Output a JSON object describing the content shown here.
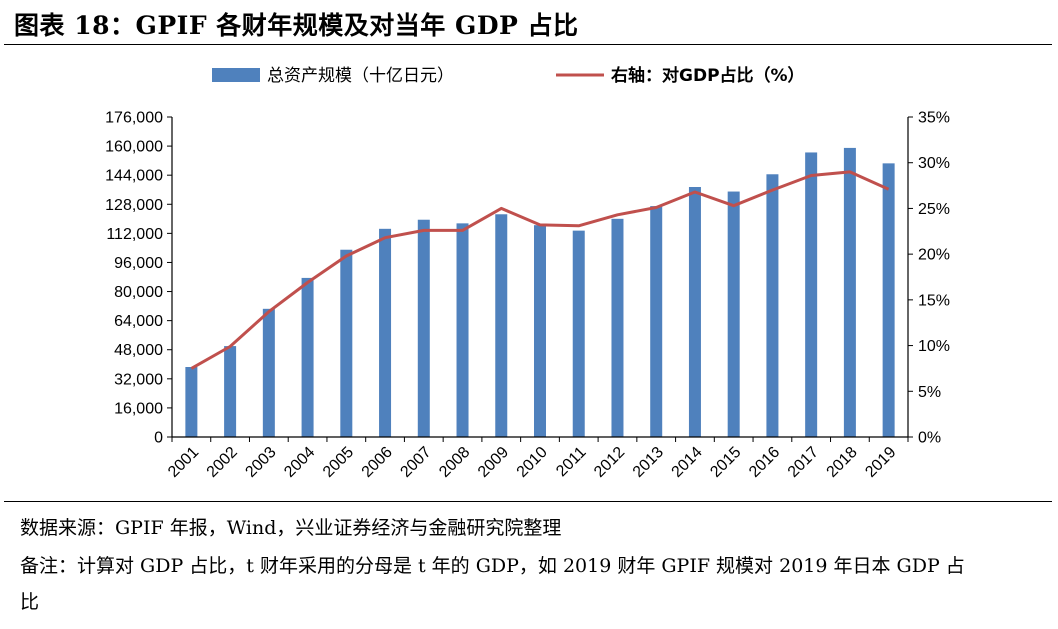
{
  "figure": {
    "title": "图表 18：GPIF 各财年规模及对当年 GDP 占比",
    "source": "数据来源：GPIF 年报，Wind，兴业证券经济与金融研究院整理",
    "note_line1": "备注：计算对 GDP 占比，t 财年采用的分母是 t 年的 GDP，如 2019 财年 GPIF 规模对 2019 年日本 GDP 占",
    "note_line2": "比"
  },
  "colors": {
    "bar": "#4f81bd",
    "line": "#c0504d",
    "axis": "#000000"
  },
  "chart_data": {
    "type": "bar",
    "categories": [
      "2001",
      "2002",
      "2003",
      "2004",
      "2005",
      "2006",
      "2007",
      "2008",
      "2009",
      "2010",
      "2011",
      "2012",
      "2013",
      "2014",
      "2015",
      "2016",
      "2017",
      "2018",
      "2019"
    ],
    "series": [
      {
        "name": "总资产规模（十亿日元）",
        "type": "bar",
        "axis": "left",
        "values": [
          38500,
          50000,
          70500,
          87500,
          103000,
          114500,
          119500,
          117500,
          122500,
          116500,
          113500,
          120000,
          127000,
          137500,
          135000,
          144500,
          156500,
          159000,
          150500
        ]
      },
      {
        "name": "右轴：对GDP占比（%）",
        "type": "line",
        "axis": "right",
        "values": [
          7.5,
          9.9,
          13.7,
          16.9,
          19.8,
          21.8,
          22.6,
          22.6,
          25.0,
          23.2,
          23.1,
          24.3,
          25.1,
          26.8,
          25.3,
          27.0,
          28.6,
          29.0,
          27.1
        ]
      }
    ],
    "y_left": {
      "range": [
        0,
        176000
      ],
      "ticks": [
        "0",
        "16,000",
        "32,000",
        "48,000",
        "64,000",
        "80,000",
        "96,000",
        "112,000",
        "128,000",
        "144,000",
        "160,000",
        "176,000"
      ]
    },
    "y_right": {
      "range": [
        0,
        35
      ],
      "ticks": [
        "0%",
        "5%",
        "10%",
        "15%",
        "20%",
        "25%",
        "30%",
        "35%"
      ]
    },
    "grid": false,
    "legend_position": "top"
  }
}
